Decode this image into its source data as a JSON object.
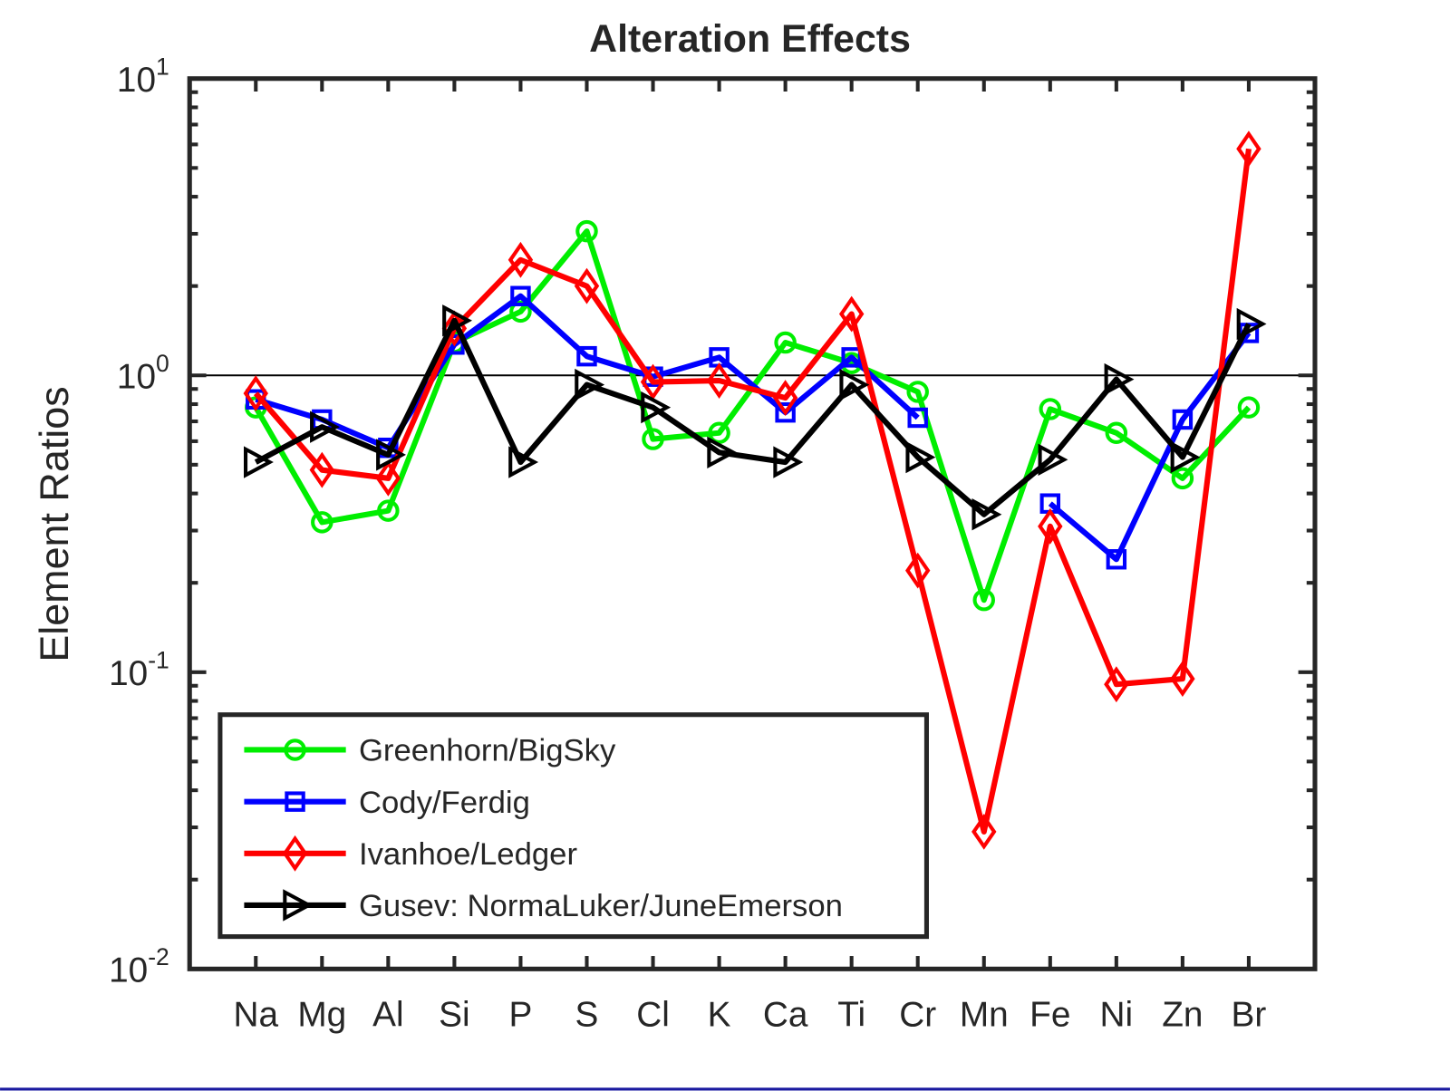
{
  "chart_data": {
    "type": "line",
    "title": "Alteration Effects",
    "y_label": "Element Ratios",
    "y_log": true,
    "categories": [
      "Na",
      "Mg",
      "Al",
      "Si",
      "P",
      "S",
      "Cl",
      "K",
      "Ca",
      "Ti",
      "Cr",
      "Mn",
      "Fe",
      "Ni",
      "Zn",
      "Br"
    ],
    "ylim": [
      0.01,
      10
    ],
    "yticks": [
      {
        "value": 0.01,
        "label": "10",
        "exponent": "-2"
      },
      {
        "value": 0.1,
        "label": "10",
        "exponent": "-1"
      },
      {
        "value": 1,
        "label": "10",
        "exponent": "0"
      },
      {
        "value": 10,
        "label": "10",
        "exponent": "1"
      }
    ],
    "reference_line": 1,
    "legend_position": "lower left",
    "series": [
      {
        "name": "Greenhorn/BigSky",
        "color": "#00ee00",
        "marker": "circle",
        "values": [
          0.78,
          0.32,
          0.35,
          1.29,
          1.64,
          3.06,
          0.61,
          0.64,
          1.29,
          1.1,
          0.88,
          0.175,
          0.77,
          0.64,
          0.45,
          0.78
        ]
      },
      {
        "name": "Cody/Ferdig",
        "color": "#0000ff",
        "marker": "square",
        "values": [
          0.83,
          0.71,
          0.57,
          1.27,
          1.85,
          1.16,
          0.99,
          1.15,
          0.75,
          1.15,
          0.72,
          null,
          0.37,
          0.24,
          0.71,
          1.39
        ]
      },
      {
        "name": "Ivanhoe/Ledger",
        "color": "#ff0000",
        "marker": "diamond",
        "values": [
          0.87,
          0.48,
          0.45,
          1.44,
          2.45,
          2.0,
          0.95,
          0.96,
          0.84,
          1.61,
          0.22,
          0.029,
          0.31,
          0.091,
          0.095,
          5.8
        ]
      },
      {
        "name": "Gusev: NormaLuker/JuneEmerson",
        "color": "#000000",
        "marker": "triangle-right",
        "values": [
          0.51,
          0.67,
          0.54,
          1.53,
          0.51,
          0.93,
          0.78,
          0.55,
          0.51,
          0.93,
          0.53,
          0.34,
          0.52,
          0.97,
          0.53,
          1.49
        ]
      }
    ]
  }
}
